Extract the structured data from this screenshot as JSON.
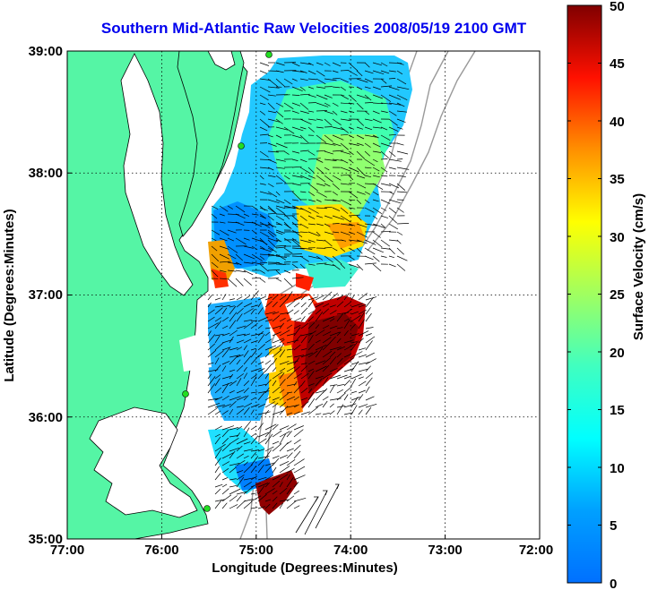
{
  "title": "Southern Mid-Atlantic Raw Velocities 2008/05/19 2100 GMT",
  "axes": {
    "xlabel": "Longitude (Degrees:Minutes)",
    "ylabel": "Latitude (Degrees:Minutes)",
    "x_ticks": [
      "77:00",
      "76:00",
      "75:00",
      "74:00",
      "73:00",
      "72:00"
    ],
    "y_ticks": [
      "39:00",
      "38:00",
      "37:00",
      "36:00",
      "35:00"
    ],
    "xlim": [
      -77,
      -72
    ],
    "ylim": [
      35,
      39
    ],
    "grid": true
  },
  "colorbar": {
    "label": "Surface Velocity (cm/s)",
    "ticks": [
      "50",
      "45",
      "40",
      "35",
      "30",
      "25",
      "20",
      "15",
      "10",
      "5",
      "0"
    ],
    "range": [
      0,
      50
    ],
    "colormap": "jet"
  },
  "colors": {
    "title": "#0000ee",
    "land": "#55f5a5",
    "coastline": "#000000",
    "bathymetry": "#999999",
    "station": "#22dd22"
  }
}
